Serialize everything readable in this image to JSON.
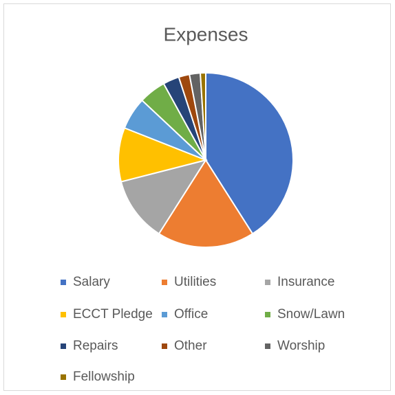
{
  "chart_data": {
    "type": "pie",
    "title": "Expenses",
    "categories": [
      "Salary",
      "Utilities",
      "Insurance",
      "ECCT Pledge",
      "Office",
      "Snow/Lawn",
      "Repairs",
      "Other",
      "Worship",
      "Fellowship"
    ],
    "values": [
      41,
      18,
      12,
      10,
      6,
      5,
      3,
      2,
      2,
      1
    ],
    "colors": [
      "#4472c4",
      "#ed7d31",
      "#a5a5a5",
      "#ffc000",
      "#5b9bd5",
      "#70ad47",
      "#264478",
      "#9e480e",
      "#636363",
      "#997300"
    ],
    "legend": "bottom"
  }
}
